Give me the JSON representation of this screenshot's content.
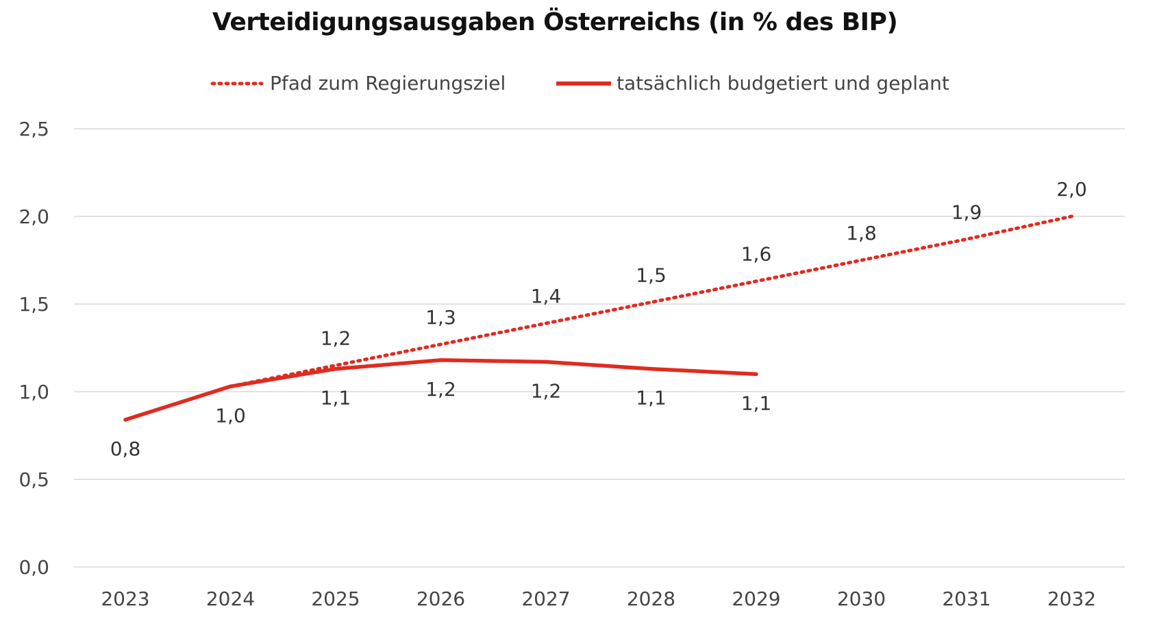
{
  "chart_data": {
    "type": "line",
    "title": "Verteidigungsausgaben Österreichs (in % des BIP)",
    "xlabel": "",
    "ylabel": "",
    "ylim": [
      0,
      2.5
    ],
    "yticks": [
      "0,0",
      "0,5",
      "1,0",
      "1,5",
      "2,0",
      "2,5"
    ],
    "ytick_values": [
      0,
      0.5,
      1.0,
      1.5,
      2.0,
      2.5
    ],
    "categories": [
      "2023",
      "2024",
      "2025",
      "2026",
      "2027",
      "2028",
      "2029",
      "2030",
      "2031",
      "2032"
    ],
    "grid": true,
    "legend_position": "top",
    "series": [
      {
        "name": "Pfad zum Regierungsziel",
        "style": "dotted",
        "color": "#e02b20",
        "values": [
          null,
          1.03,
          1.15,
          1.27,
          1.39,
          1.51,
          1.63,
          1.75,
          1.87,
          2.0
        ],
        "labels": [
          "",
          "",
          "1,2",
          "1,3",
          "1,4",
          "1,5",
          "1,6",
          "1,8",
          "1,9",
          "2,0"
        ]
      },
      {
        "name": "tatsächlich budgetiert und geplant",
        "style": "solid",
        "color": "#e02b20",
        "values": [
          0.84,
          1.03,
          1.13,
          1.18,
          1.17,
          1.13,
          1.1,
          null,
          null,
          null
        ],
        "labels": [
          "0,8",
          "1,0",
          "1,1",
          "1,2",
          "1,2",
          "1,1",
          "1,1",
          "",
          "",
          ""
        ]
      }
    ]
  }
}
